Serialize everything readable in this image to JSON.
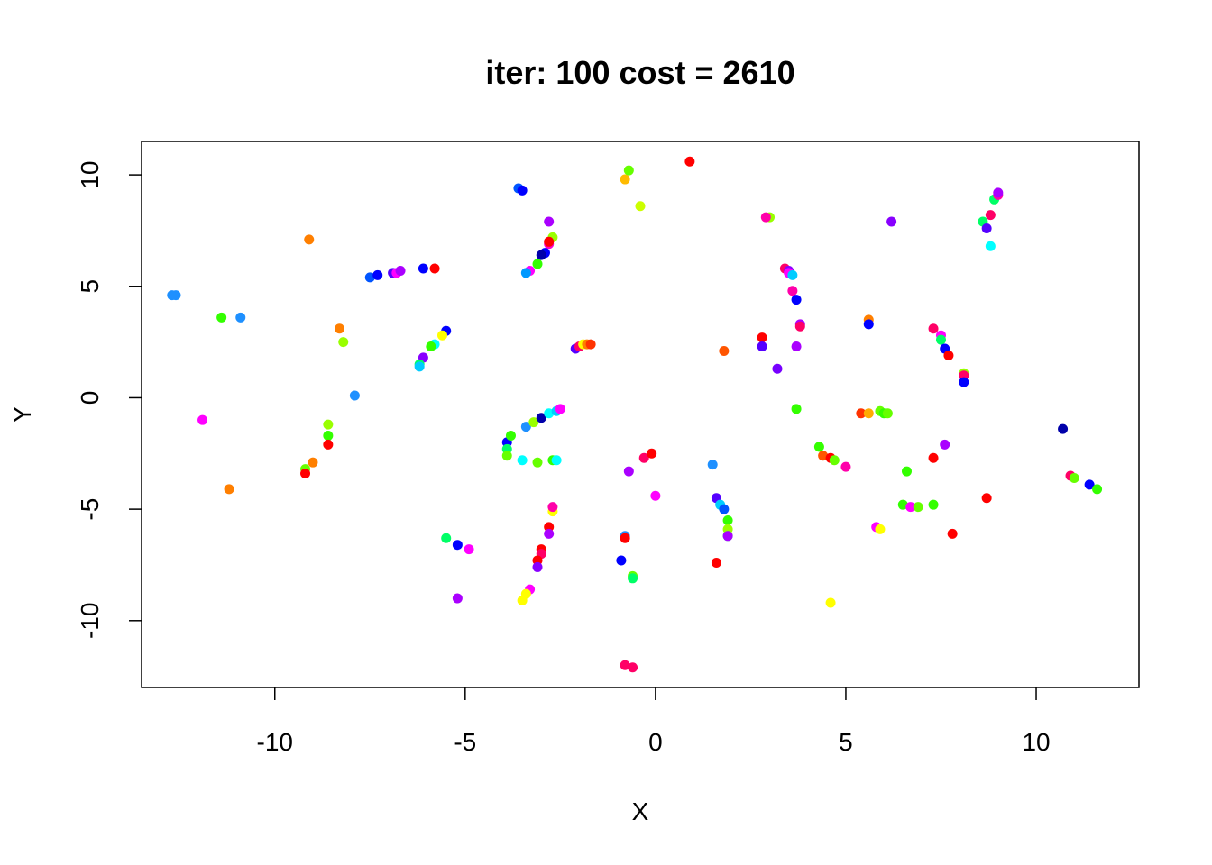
{
  "chart_data": {
    "type": "scatter",
    "title": "iter: 100 cost = 2610",
    "xlabel": "X",
    "ylabel": "Y",
    "xlim": [
      -13.5,
      12.7
    ],
    "ylim": [
      -13.0,
      11.5
    ],
    "xticks": [
      -10,
      -5,
      0,
      5,
      10
    ],
    "yticks": [
      -10,
      -5,
      0,
      5,
      10
    ],
    "xtick_labels": [
      "-10",
      "-5",
      "0",
      "5",
      "10"
    ],
    "ytick_labels": [
      "-10",
      "-5",
      "0",
      "5",
      "10"
    ],
    "grid": false,
    "legend": "none",
    "points": [
      {
        "x": -12.7,
        "y": 4.6,
        "c": "#1e90ff"
      },
      {
        "x": -12.6,
        "y": 4.6,
        "c": "#1e90ff"
      },
      {
        "x": -11.4,
        "y": 3.6,
        "c": "#33ff00"
      },
      {
        "x": -10.9,
        "y": 3.6,
        "c": "#1e90ff"
      },
      {
        "x": -11.9,
        "y": -1.0,
        "c": "#ff00ff"
      },
      {
        "x": -11.2,
        "y": -4.1,
        "c": "#ff7f00"
      },
      {
        "x": -9.1,
        "y": 7.1,
        "c": "#ff7f00"
      },
      {
        "x": -8.3,
        "y": 3.1,
        "c": "#ff7f00"
      },
      {
        "x": -8.2,
        "y": 2.5,
        "c": "#99ff00"
      },
      {
        "x": -7.9,
        "y": 0.1,
        "c": "#1e90ff"
      },
      {
        "x": -8.6,
        "y": -1.2,
        "c": "#99ff00"
      },
      {
        "x": -8.6,
        "y": -1.7,
        "c": "#33ff00"
      },
      {
        "x": -8.6,
        "y": -2.1,
        "c": "#ff0000"
      },
      {
        "x": -9.0,
        "y": -2.9,
        "c": "#ff7f00"
      },
      {
        "x": -9.2,
        "y": -3.2,
        "c": "#66ff00"
      },
      {
        "x": -9.2,
        "y": -3.4,
        "c": "#ff0000"
      },
      {
        "x": -7.5,
        "y": 5.4,
        "c": "#0055ff"
      },
      {
        "x": -7.3,
        "y": 5.5,
        "c": "#0000ff"
      },
      {
        "x": -6.9,
        "y": 5.6,
        "c": "#5500ff"
      },
      {
        "x": -6.8,
        "y": 5.6,
        "c": "#ff00ff"
      },
      {
        "x": -6.7,
        "y": 5.7,
        "c": "#aa00ff"
      },
      {
        "x": -6.1,
        "y": 5.8,
        "c": "#0000ff"
      },
      {
        "x": -5.8,
        "y": 5.8,
        "c": "#ff0000"
      },
      {
        "x": -5.5,
        "y": 3.0,
        "c": "#0000ff"
      },
      {
        "x": -5.6,
        "y": 2.8,
        "c": "#ffff00"
      },
      {
        "x": -5.8,
        "y": 2.4,
        "c": "#00ffff"
      },
      {
        "x": -5.9,
        "y": 2.3,
        "c": "#33ff00"
      },
      {
        "x": -6.1,
        "y": 1.8,
        "c": "#8800ff"
      },
      {
        "x": -6.2,
        "y": 1.5,
        "c": "#00ff66"
      },
      {
        "x": -6.2,
        "y": 1.4,
        "c": "#00ccff"
      },
      {
        "x": -3.6,
        "y": 9.4,
        "c": "#0055ff"
      },
      {
        "x": -3.5,
        "y": 9.3,
        "c": "#0000ff"
      },
      {
        "x": -2.8,
        "y": 7.9,
        "c": "#aa00ff"
      },
      {
        "x": -2.7,
        "y": 7.2,
        "c": "#99ff00"
      },
      {
        "x": -2.8,
        "y": 6.9,
        "c": "#ff00cc"
      },
      {
        "x": -2.9,
        "y": 6.5,
        "c": "#0000ff"
      },
      {
        "x": -3.0,
        "y": 6.4,
        "c": "#0000aa"
      },
      {
        "x": -3.1,
        "y": 6.0,
        "c": "#33ff00"
      },
      {
        "x": -3.3,
        "y": 5.7,
        "c": "#ff00ff"
      },
      {
        "x": -3.4,
        "y": 5.6,
        "c": "#0099ff"
      },
      {
        "x": -2.8,
        "y": 7.0,
        "c": "#ff0000"
      },
      {
        "x": -3.9,
        "y": -2.0,
        "c": "#0000ff"
      },
      {
        "x": -3.8,
        "y": -1.7,
        "c": "#33ff00"
      },
      {
        "x": -3.9,
        "y": -2.3,
        "c": "#00ff66"
      },
      {
        "x": -3.9,
        "y": -2.6,
        "c": "#66ff00"
      },
      {
        "x": -3.4,
        "y": -1.3,
        "c": "#1e90ff"
      },
      {
        "x": -3.2,
        "y": -1.1,
        "c": "#99ff00"
      },
      {
        "x": -3.0,
        "y": -0.9,
        "c": "#0000aa"
      },
      {
        "x": -2.8,
        "y": -0.7,
        "c": "#00ffff"
      },
      {
        "x": -2.6,
        "y": -0.6,
        "c": "#00ccff"
      },
      {
        "x": -2.5,
        "y": -0.5,
        "c": "#ff00ff"
      },
      {
        "x": -3.5,
        "y": -2.8,
        "c": "#00ffff"
      },
      {
        "x": -3.1,
        "y": -2.9,
        "c": "#66ff00"
      },
      {
        "x": -2.7,
        "y": -2.8,
        "c": "#33ff00"
      },
      {
        "x": -2.6,
        "y": -2.8,
        "c": "#00ffff"
      },
      {
        "x": -2.1,
        "y": 2.2,
        "c": "#5500ff"
      },
      {
        "x": -2.0,
        "y": 2.3,
        "c": "#ff0066"
      },
      {
        "x": -1.9,
        "y": 2.4,
        "c": "#ffff00"
      },
      {
        "x": -1.8,
        "y": 2.4,
        "c": "#ff7f00"
      },
      {
        "x": -1.7,
        "y": 2.4,
        "c": "#ff3300"
      },
      {
        "x": -0.8,
        "y": 9.8,
        "c": "#ffbb00"
      },
      {
        "x": -0.7,
        "y": 10.2,
        "c": "#66ff00"
      },
      {
        "x": -0.4,
        "y": 8.6,
        "c": "#ccff00"
      },
      {
        "x": 0.9,
        "y": 10.6,
        "c": "#ff0000"
      },
      {
        "x": -0.3,
        "y": -2.7,
        "c": "#ff0066"
      },
      {
        "x": -0.1,
        "y": -2.5,
        "c": "#ff0000"
      },
      {
        "x": -0.7,
        "y": -3.3,
        "c": "#aa00ff"
      },
      {
        "x": 0.0,
        "y": -4.4,
        "c": "#ff00ff"
      },
      {
        "x": -5.5,
        "y": -6.3,
        "c": "#00ff66"
      },
      {
        "x": -5.2,
        "y": -6.6,
        "c": "#0000ff"
      },
      {
        "x": -4.9,
        "y": -6.8,
        "c": "#ff00ff"
      },
      {
        "x": -5.2,
        "y": -9.0,
        "c": "#aa00ff"
      },
      {
        "x": -2.7,
        "y": -5.1,
        "c": "#ffff00"
      },
      {
        "x": -2.7,
        "y": -4.9,
        "c": "#ff00aa"
      },
      {
        "x": -2.8,
        "y": -5.8,
        "c": "#ff0000"
      },
      {
        "x": -2.8,
        "y": -6.1,
        "c": "#aa00ff"
      },
      {
        "x": -3.0,
        "y": -6.8,
        "c": "#ff0000"
      },
      {
        "x": -3.0,
        "y": -7.0,
        "c": "#ff0066"
      },
      {
        "x": -3.1,
        "y": -7.3,
        "c": "#ff0000"
      },
      {
        "x": -3.1,
        "y": -7.6,
        "c": "#8800ff"
      },
      {
        "x": -3.3,
        "y": -8.6,
        "c": "#ff00ff"
      },
      {
        "x": -3.4,
        "y": -8.8,
        "c": "#ffff00"
      },
      {
        "x": -3.5,
        "y": -9.1,
        "c": "#ffff00"
      },
      {
        "x": -0.9,
        "y": -7.3,
        "c": "#0000ff"
      },
      {
        "x": -0.8,
        "y": -6.2,
        "c": "#1e90ff"
      },
      {
        "x": -0.8,
        "y": -6.3,
        "c": "#ff0000"
      },
      {
        "x": -0.6,
        "y": -8.0,
        "c": "#66ff00"
      },
      {
        "x": -0.6,
        "y": -8.1,
        "c": "#00ff66"
      },
      {
        "x": -0.8,
        "y": -12.0,
        "c": "#ff0066"
      },
      {
        "x": -0.6,
        "y": -12.1,
        "c": "#ff0066"
      },
      {
        "x": 1.5,
        "y": -3.0,
        "c": "#1e90ff"
      },
      {
        "x": 1.6,
        "y": -4.5,
        "c": "#5500ff"
      },
      {
        "x": 1.7,
        "y": -4.8,
        "c": "#00ccff"
      },
      {
        "x": 1.8,
        "y": -5.0,
        "c": "#0055ff"
      },
      {
        "x": 1.9,
        "y": -5.5,
        "c": "#33ff00"
      },
      {
        "x": 1.9,
        "y": -5.9,
        "c": "#99ff00"
      },
      {
        "x": 1.9,
        "y": -6.2,
        "c": "#00ff66"
      },
      {
        "x": 1.9,
        "y": -6.2,
        "c": "#aa00ff"
      },
      {
        "x": 1.6,
        "y": -7.4,
        "c": "#ff0000"
      },
      {
        "x": 1.8,
        "y": 2.1,
        "c": "#ff5500"
      },
      {
        "x": 2.8,
        "y": 2.7,
        "c": "#ff0000"
      },
      {
        "x": 2.8,
        "y": 2.3,
        "c": "#5500ff"
      },
      {
        "x": 3.0,
        "y": 8.1,
        "c": "#99ff00"
      },
      {
        "x": 2.9,
        "y": 8.1,
        "c": "#ff00aa"
      },
      {
        "x": 3.2,
        "y": 1.3,
        "c": "#7700ff"
      },
      {
        "x": 3.4,
        "y": 5.8,
        "c": "#ff0066"
      },
      {
        "x": 3.5,
        "y": 5.7,
        "c": "#8800ff"
      },
      {
        "x": 3.5,
        "y": 5.6,
        "c": "#ff00ff"
      },
      {
        "x": 3.6,
        "y": 5.5,
        "c": "#00ccff"
      },
      {
        "x": 3.6,
        "y": 4.8,
        "c": "#ff00aa"
      },
      {
        "x": 3.7,
        "y": 4.4,
        "c": "#0000ff"
      },
      {
        "x": 3.7,
        "y": 2.3,
        "c": "#aa00ff"
      },
      {
        "x": 3.8,
        "y": 3.3,
        "c": "#aa00ff"
      },
      {
        "x": 3.8,
        "y": 3.2,
        "c": "#ff0066"
      },
      {
        "x": 3.7,
        "y": -0.5,
        "c": "#33ff00"
      },
      {
        "x": 4.3,
        "y": -2.2,
        "c": "#33ff00"
      },
      {
        "x": 4.4,
        "y": -2.6,
        "c": "#ff5500"
      },
      {
        "x": 4.6,
        "y": -2.7,
        "c": "#ff0000"
      },
      {
        "x": 4.7,
        "y": -2.8,
        "c": "#66ff00"
      },
      {
        "x": 5.0,
        "y": -3.1,
        "c": "#ff00aa"
      },
      {
        "x": 4.6,
        "y": -9.2,
        "c": "#ffff00"
      },
      {
        "x": 5.4,
        "y": -0.7,
        "c": "#ff3300"
      },
      {
        "x": 5.6,
        "y": -0.7,
        "c": "#ffaa00"
      },
      {
        "x": 5.9,
        "y": -0.6,
        "c": "#66ff00"
      },
      {
        "x": 6.0,
        "y": -0.7,
        "c": "#33ff00"
      },
      {
        "x": 6.1,
        "y": -0.7,
        "c": "#66ff00"
      },
      {
        "x": 5.6,
        "y": 3.5,
        "c": "#ff7f00"
      },
      {
        "x": 5.6,
        "y": 3.3,
        "c": "#0000ff"
      },
      {
        "x": 6.2,
        "y": 7.9,
        "c": "#8800ff"
      },
      {
        "x": 6.6,
        "y": -3.3,
        "c": "#33ff00"
      },
      {
        "x": 5.8,
        "y": -5.8,
        "c": "#ff00ff"
      },
      {
        "x": 5.9,
        "y": -5.9,
        "c": "#ffff00"
      },
      {
        "x": 6.5,
        "y": -4.8,
        "c": "#33ff00"
      },
      {
        "x": 6.7,
        "y": -4.9,
        "c": "#ff00ff"
      },
      {
        "x": 6.9,
        "y": -4.9,
        "c": "#66ff00"
      },
      {
        "x": 7.3,
        "y": -4.8,
        "c": "#33ff00"
      },
      {
        "x": 7.3,
        "y": -2.7,
        "c": "#ff0000"
      },
      {
        "x": 7.3,
        "y": 3.1,
        "c": "#ff0066"
      },
      {
        "x": 7.5,
        "y": 2.8,
        "c": "#ff00ff"
      },
      {
        "x": 7.5,
        "y": 2.6,
        "c": "#00ff66"
      },
      {
        "x": 7.6,
        "y": 2.2,
        "c": "#0000ff"
      },
      {
        "x": 7.7,
        "y": 1.9,
        "c": "#ff0000"
      },
      {
        "x": 7.6,
        "y": -2.1,
        "c": "#aa00ff"
      },
      {
        "x": 8.1,
        "y": 1.1,
        "c": "#99ff00"
      },
      {
        "x": 8.1,
        "y": 1.0,
        "c": "#ff0066"
      },
      {
        "x": 8.1,
        "y": 0.7,
        "c": "#0000ff"
      },
      {
        "x": 7.8,
        "y": -6.1,
        "c": "#ff0000"
      },
      {
        "x": 8.7,
        "y": -4.5,
        "c": "#ff0000"
      },
      {
        "x": 8.9,
        "y": 8.9,
        "c": "#00ff66"
      },
      {
        "x": 9.0,
        "y": 9.1,
        "c": "#ff00aa"
      },
      {
        "x": 9.0,
        "y": 9.2,
        "c": "#aa00ff"
      },
      {
        "x": 8.6,
        "y": 7.9,
        "c": "#00ff66"
      },
      {
        "x": 8.8,
        "y": 8.2,
        "c": "#ff0066"
      },
      {
        "x": 8.7,
        "y": 7.6,
        "c": "#5500ff"
      },
      {
        "x": 8.8,
        "y": 6.8,
        "c": "#00ffff"
      },
      {
        "x": 10.7,
        "y": -1.4,
        "c": "#0000aa"
      },
      {
        "x": 10.9,
        "y": -3.5,
        "c": "#ff0066"
      },
      {
        "x": 11.0,
        "y": -3.6,
        "c": "#66ff00"
      },
      {
        "x": 11.4,
        "y": -3.9,
        "c": "#0000ff"
      },
      {
        "x": 11.6,
        "y": -4.1,
        "c": "#33ff00"
      }
    ]
  }
}
